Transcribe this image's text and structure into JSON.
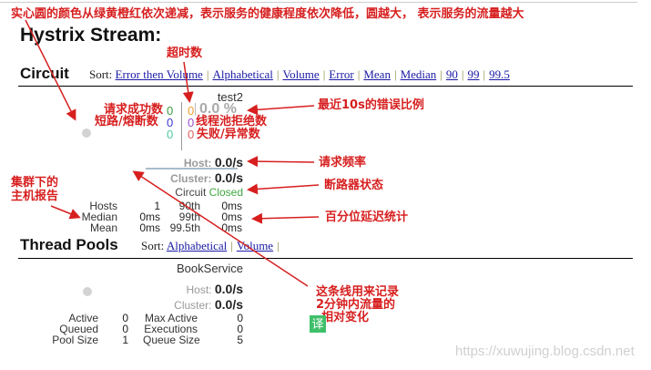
{
  "title": "Hystrix Stream:",
  "circuit": {
    "heading": "Circuit",
    "sort_label": "Sort:",
    "sort_links": [
      "Error then Volume",
      "Alphabetical",
      "Volume",
      "Error",
      "Mean",
      "Median",
      "90",
      "99",
      "99.5"
    ],
    "name": "test2",
    "success": "0",
    "short_circuited": "0",
    "bad_request": "0",
    "timeout": "0",
    "rejected": "0",
    "failure": "0",
    "error_pct": "0.0 %",
    "host_label": "Host:",
    "host_rate": "0.0/s",
    "cluster_label": "Cluster:",
    "cluster_rate": "0.0/s",
    "circuit_label": "Circuit",
    "circuit_status": "Closed",
    "stats": [
      [
        "Hosts",
        "1",
        "90th",
        "0ms"
      ],
      [
        "Median",
        "0ms",
        "99th",
        "0ms"
      ],
      [
        "Mean",
        "0ms",
        "99.5th",
        "0ms"
      ]
    ],
    "colors": {
      "success": "#3c9a3c",
      "short": "#3a3ad0",
      "bad": "#4fc9a5",
      "timeout": "#f0a030",
      "rejected": "#9a4fc9",
      "failure": "#e06060",
      "closed": "#3fa83f"
    }
  },
  "pools": {
    "heading": "Thread Pools",
    "sort_label": "Sort:",
    "sort_links": [
      "Alphabetical",
      "Volume"
    ],
    "name": "BookService",
    "host_label": "Host:",
    "host_rate": "0.0/s",
    "cluster_label": "Cluster:",
    "cluster_rate": "0.0/s",
    "stats": [
      [
        "Active",
        "0",
        "Max Active",
        "0"
      ],
      [
        "Queued",
        "0",
        "Executions",
        "0"
      ],
      [
        "Pool Size",
        "1",
        "Queue Size",
        "5"
      ]
    ]
  },
  "annotations": {
    "top": "实心圆的颜色从绿黄橙红依次递减，表示服务的健康程度依次降低，圆越大，  表示服务的流量越大",
    "timeout": "超时数",
    "success": "请求成功数",
    "short": "短路/熔断数",
    "rejected": "线程池拒绝数",
    "failure": "失败/异常数",
    "error_pct": "最近10s的错误比例",
    "rate": "请求频率",
    "status": "断路器状态",
    "cluster_1": "集群下的",
    "cluster_2": "主机报告",
    "latency": "百分位延迟统计",
    "line_1": "这条线用来记录",
    "line_2": "2分钟内流量的",
    "line_3": "相对变化",
    "translate": "译"
  },
  "watermark": "https://xuwujing.blog.csdn.net"
}
